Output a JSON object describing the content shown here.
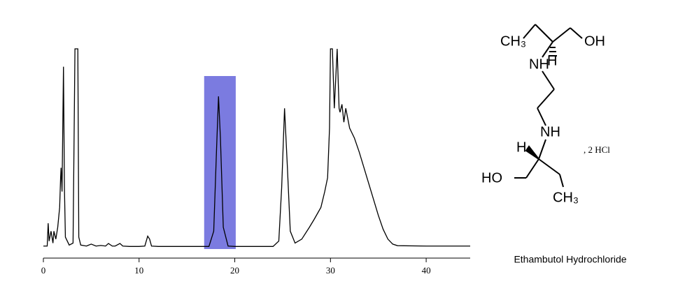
{
  "chart_data": {
    "type": "line",
    "color": "#000000",
    "x": [
      0,
      0.4,
      0.5,
      0.6,
      0.8,
      1.0,
      1.1,
      1.3,
      1.5,
      1.7,
      1.8,
      1.85,
      1.95,
      2.1,
      2.2,
      2.3,
      2.7,
      3.1,
      3.3,
      3.6,
      3.7,
      3.9,
      4.5,
      5,
      5.5,
      6,
      6.5,
      6.8,
      7.2,
      7.5,
      8,
      8.3,
      9,
      10,
      10.6,
      10.9,
      11.1,
      11.3,
      12,
      17.3,
      17.8,
      18.1,
      18.3,
      18.5,
      18.8,
      19.3,
      20,
      24,
      24.6,
      24.9,
      25.2,
      25.5,
      25.8,
      26.3,
      27,
      27.8,
      28.3,
      29,
      29.4,
      29.7,
      29.9,
      30,
      30.2,
      30.4,
      30.7,
      30.9,
      31,
      31.2,
      31.4,
      31.6,
      32,
      32.5,
      33,
      33.5,
      34,
      34.5,
      35,
      35.5,
      36,
      36.5,
      37,
      40,
      44.6
    ],
    "values": [
      0.5,
      0.5,
      12,
      3,
      8,
      2,
      8,
      4,
      10,
      20,
      35,
      40,
      28,
      91,
      30,
      5,
      1,
      2,
      100,
      100,
      5,
      1,
      0.5,
      1.5,
      0.5,
      0.8,
      0.5,
      1.8,
      0.5,
      0.5,
      1.8,
      0.5,
      0.3,
      0.3,
      0.5,
      5.5,
      4,
      0.5,
      0.3,
      0.3,
      8,
      50,
      76,
      55,
      10,
      0.5,
      0.3,
      0.3,
      3,
      30,
      70,
      40,
      8,
      2,
      4,
      10,
      14,
      20,
      28,
      35,
      60,
      100,
      100,
      70,
      100,
      70,
      68,
      72,
      63,
      70,
      60,
      55,
      48,
      40,
      32,
      24,
      16,
      9,
      4,
      1.5,
      0.7,
      0.5,
      0.5
    ],
    "xlim": [
      0,
      44.6
    ],
    "ylim": [
      -1,
      100
    ],
    "xticks": [
      0,
      10,
      20,
      30,
      40
    ],
    "highlight": [
      16.8,
      20.1
    ],
    "highlight_color": "#7b7be0"
  },
  "structure": {
    "atoms": [
      "CH₃",
      "OH",
      "NH",
      "H",
      "NH",
      "H",
      "HO",
      "CH₃"
    ],
    "salt": ", 2 HCl",
    "name": "Ethambutol Hydrochloride"
  }
}
